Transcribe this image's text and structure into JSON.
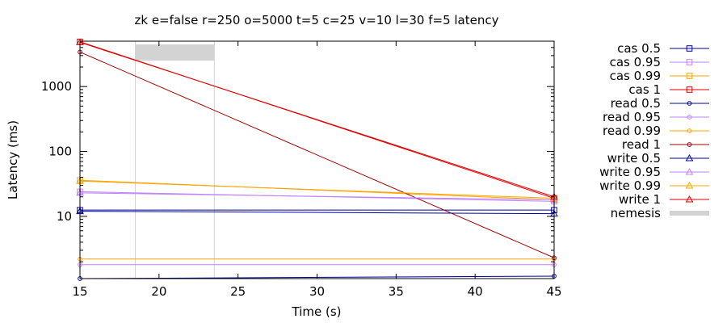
{
  "chart_data": {
    "type": "line",
    "title": "zk e=false r=250 o=5000 t=5 c=25 v=10 l=30 f=5 latency",
    "xlabel": "Time (s)",
    "ylabel": "Latency (ms)",
    "xlim": [
      15,
      45
    ],
    "ylim": [
      1.1,
      5000
    ],
    "yscale": "log",
    "x_ticks": [
      "15",
      "20",
      "25",
      "30",
      "35",
      "40",
      "45"
    ],
    "y_ticks": [
      "10",
      "100",
      "1000"
    ],
    "legend_position": "right",
    "x": [
      15,
      45
    ],
    "series": [
      {
        "name": "cas 0.5",
        "color": "#0000a0",
        "marker": "square",
        "values": [
          12.5,
          12.5
        ]
      },
      {
        "name": "cas 0.95",
        "color": "#c080ff",
        "marker": "square",
        "values": [
          24,
          17
        ]
      },
      {
        "name": "cas 0.99",
        "color": "#ffa500",
        "marker": "square",
        "values": [
          36,
          18
        ]
      },
      {
        "name": "cas 1",
        "color": "#e00000",
        "marker": "square",
        "values": [
          4900,
          19
        ]
      },
      {
        "name": "read 0.5",
        "color": "#0000a0",
        "marker": "circle",
        "values": [
          1.1,
          1.2
        ]
      },
      {
        "name": "read 0.95",
        "color": "#c080ff",
        "marker": "circle",
        "values": [
          1.8,
          1.8
        ]
      },
      {
        "name": "read 0.99",
        "color": "#ffa500",
        "marker": "circle",
        "values": [
          2.2,
          2.2
        ]
      },
      {
        "name": "read 1",
        "color": "#a00000",
        "marker": "circle",
        "values": [
          3400,
          2.3
        ]
      },
      {
        "name": "write 0.5",
        "color": "#0000a0",
        "marker": "triangle",
        "values": [
          12,
          11
        ]
      },
      {
        "name": "write 0.95",
        "color": "#c080ff",
        "marker": "triangle",
        "values": [
          23,
          18
        ]
      },
      {
        "name": "write 0.99",
        "color": "#ffa500",
        "marker": "triangle",
        "values": [
          35,
          19
        ]
      },
      {
        "name": "write 1",
        "color": "#e00000",
        "marker": "triangle",
        "values": [
          4800,
          20
        ]
      }
    ],
    "nemesis": {
      "name": "nemesis",
      "color": "#d3d3d3",
      "start": 18.5,
      "end": 23.5
    }
  }
}
